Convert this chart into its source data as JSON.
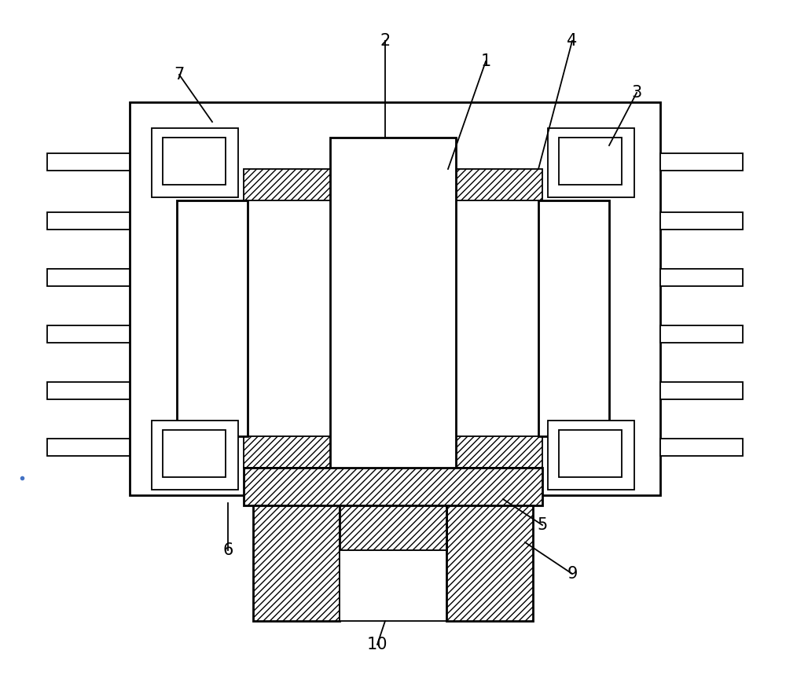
{
  "bg_color": "#ffffff",
  "line_color": "#000000",
  "hatch_pattern": "////",
  "figsize": [
    10.0,
    8.74
  ],
  "dpi": 100,
  "lw_main": 2.0,
  "lw_thin": 1.3,
  "label_fs": 15
}
